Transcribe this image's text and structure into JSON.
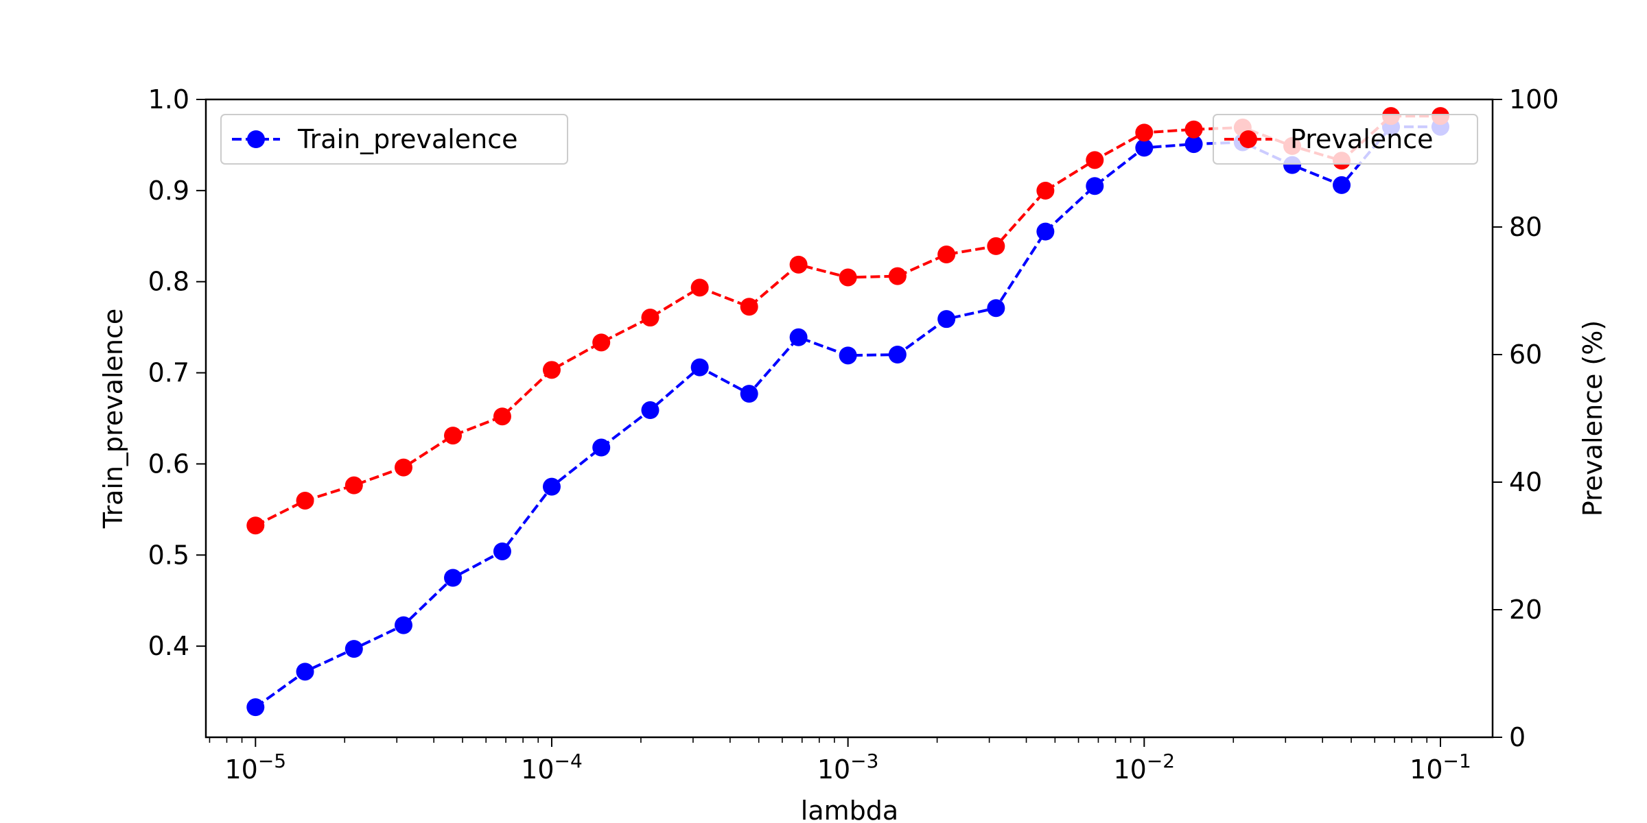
{
  "chart_data": {
    "type": "line",
    "xscale": "log",
    "xlabel": "lambda",
    "xlim": [
      6.8e-06,
      0.15
    ],
    "x": [
      1e-05,
      1.47e-05,
      2.15e-05,
      3.16e-05,
      4.64e-05,
      6.81e-05,
      0.0001,
      0.000147,
      0.000215,
      0.000316,
      0.000464,
      0.000681,
      0.001,
      0.00147,
      0.00215,
      0.00316,
      0.00464,
      0.00681,
      0.01,
      0.0147,
      0.0215,
      0.0316,
      0.0464,
      0.0681,
      0.1
    ],
    "xticks": [
      {
        "value": 1e-05,
        "base": "10",
        "exp": "−5"
      },
      {
        "value": 0.0001,
        "base": "10",
        "exp": "−4"
      },
      {
        "value": 0.001,
        "base": "10",
        "exp": "−3"
      },
      {
        "value": 0.01,
        "base": "10",
        "exp": "−2"
      },
      {
        "value": 0.1,
        "base": "10",
        "exp": "−1"
      }
    ],
    "y_left": {
      "label": "Train_prevalence",
      "lim": [
        0.3,
        1.0
      ],
      "ticks": [
        "0.4",
        "0.5",
        "0.6",
        "0.7",
        "0.8",
        "0.9",
        "1.0"
      ]
    },
    "y_right": {
      "label": "Prevalence (%)",
      "lim": [
        0,
        100
      ],
      "ticks": [
        "0",
        "20",
        "40",
        "60",
        "80",
        "100"
      ]
    },
    "grid": false,
    "series": [
      {
        "name": "Train_prevalence",
        "axis": "left",
        "color": "#0000ff",
        "linestyle": "dashed",
        "marker": "circle",
        "legend_position": "upper-left",
        "values": [
          0.333,
          0.372,
          0.397,
          0.423,
          0.475,
          0.504,
          0.575,
          0.618,
          0.659,
          0.706,
          0.677,
          0.739,
          0.719,
          0.72,
          0.759,
          0.771,
          0.855,
          0.905,
          0.947,
          0.951,
          0.953,
          0.928,
          0.906,
          0.97,
          0.97
        ]
      },
      {
        "name": "Prevalence",
        "axis": "right",
        "color": "#ff0000",
        "linestyle": "dashed",
        "marker": "circle",
        "legend_position": "upper-right",
        "values": [
          33.2,
          37.1,
          39.5,
          42.3,
          47.3,
          50.3,
          57.6,
          61.9,
          65.8,
          70.5,
          67.5,
          74.1,
          72.1,
          72.3,
          75.7,
          77.0,
          85.7,
          90.5,
          94.8,
          95.3,
          95.6,
          92.7,
          90.4,
          97.4,
          97.4
        ]
      }
    ]
  }
}
